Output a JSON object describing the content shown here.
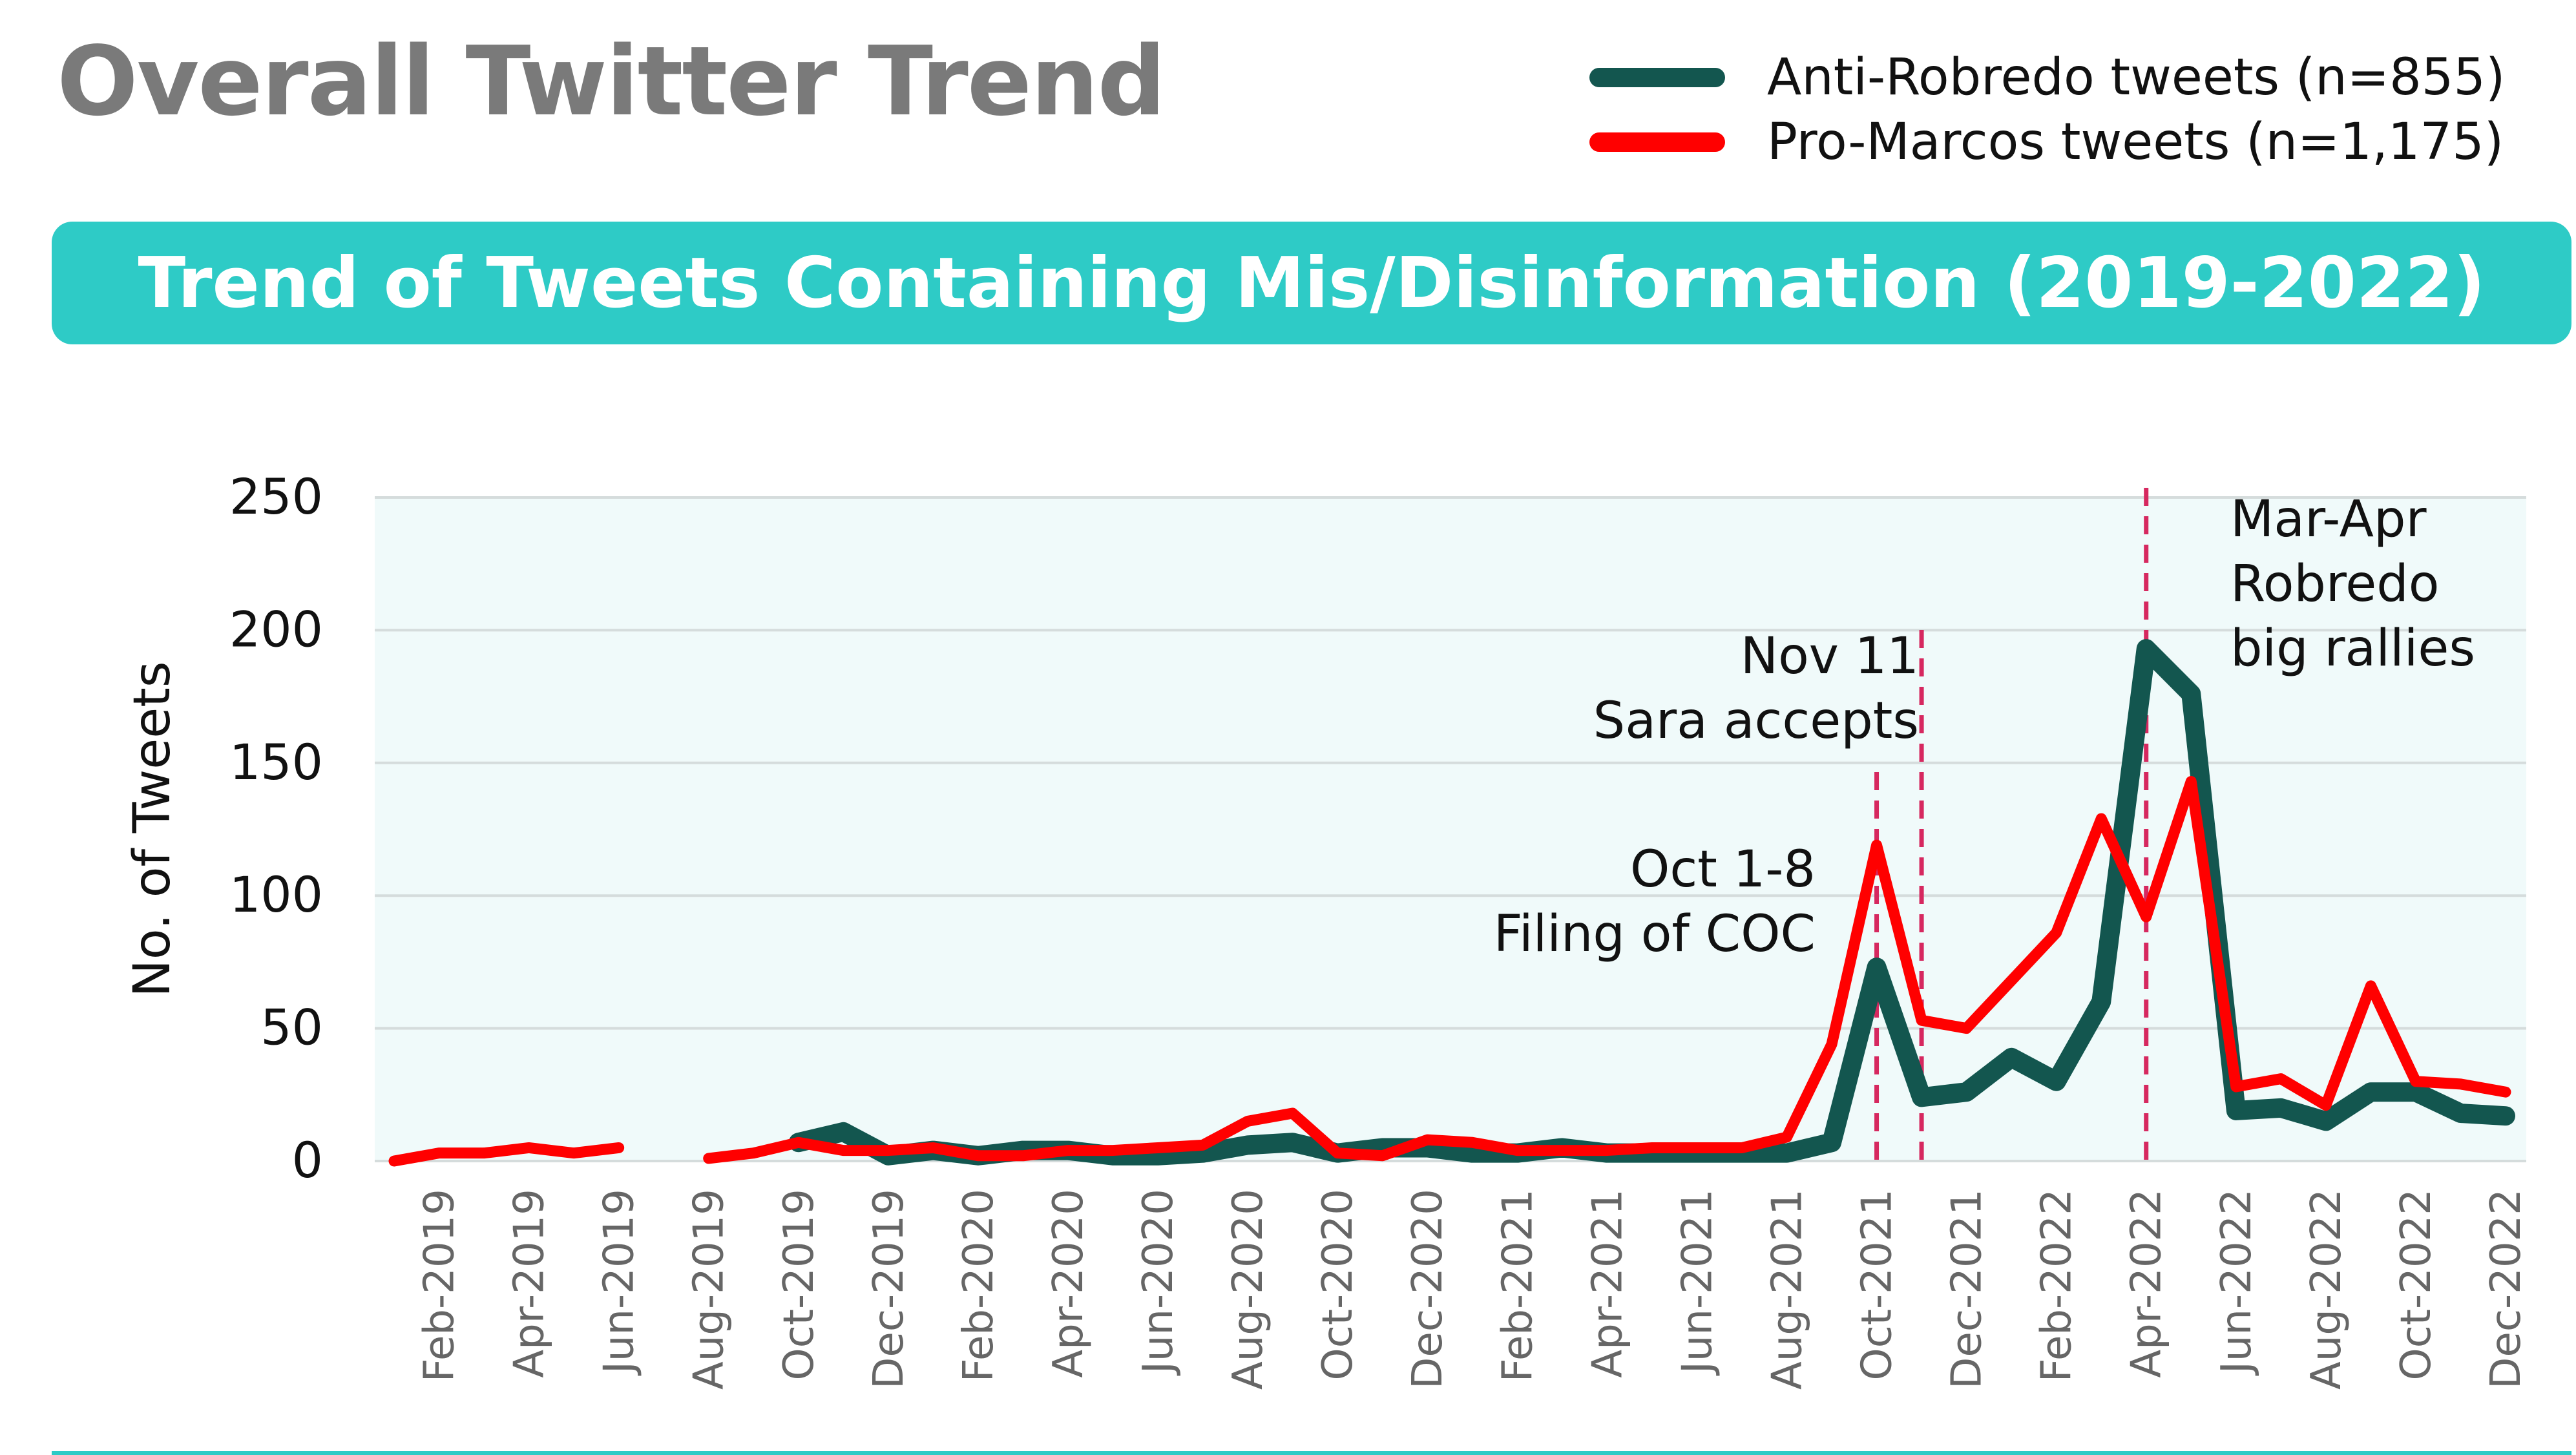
{
  "page_title": "Overall Twitter Trend",
  "banner_title": "Trend of Tweets Containing Mis/Disinformation (2019-2022)",
  "colors": {
    "banner": "#2ecbc6",
    "anti": "#13564f",
    "pro": "#ff0000",
    "marker": "#d6285f",
    "plot_bg": "#f0fafa",
    "grid": "#d5dcdc"
  },
  "chart_data": {
    "type": "line",
    "ylabel": "No. of Tweets",
    "xlabel": "",
    "ylim": [
      0,
      250
    ],
    "y_ticks": [
      0,
      50,
      100,
      150,
      200,
      250
    ],
    "grid": "horizontal",
    "legend_position": "top-right",
    "x": [
      "Jan-2019",
      "Feb-2019",
      "Mar-2019",
      "Apr-2019",
      "May-2019",
      "Jun-2019",
      "Jul-2019",
      "Aug-2019",
      "Sep-2019",
      "Oct-2019",
      "Nov-2019",
      "Dec-2019",
      "Jan-2020",
      "Feb-2020",
      "Mar-2020",
      "Apr-2020",
      "May-2020",
      "Jun-2020",
      "Jul-2020",
      "Aug-2020",
      "Sep-2020",
      "Oct-2020",
      "Nov-2020",
      "Dec-2020",
      "Jan-2021",
      "Feb-2021",
      "Mar-2021",
      "Apr-2021",
      "May-2021",
      "Jun-2021",
      "Jul-2021",
      "Aug-2021",
      "Sep-2021",
      "Oct-2021",
      "Nov-2021",
      "Dec-2021",
      "Jan-2022",
      "Feb-2022",
      "Mar-2022",
      "Apr-2022",
      "May-2022",
      "Jun-2022",
      "Jul-2022",
      "Aug-2022",
      "Sep-2022",
      "Oct-2022",
      "Nov-2022",
      "Dec-2022"
    ],
    "x_tick_labels": [
      "Feb-2019",
      "Apr-2019",
      "Jun-2019",
      "Aug-2019",
      "Oct-2019",
      "Dec-2019",
      "Feb-2020",
      "Apr-2020",
      "Jun-2020",
      "Aug-2020",
      "Oct-2020",
      "Dec-2020",
      "Feb-2021",
      "Apr-2021",
      "Jun-2021",
      "Aug-2021",
      "Oct-2021",
      "Dec-2021",
      "Feb-2022",
      "Apr-2022",
      "Jun-2022",
      "Aug-2022",
      "Oct-2022",
      "Dec-2022"
    ],
    "series": [
      {
        "name": "Anti-Robredo tweets (n=855)",
        "values": [
          null,
          null,
          null,
          null,
          null,
          null,
          null,
          null,
          null,
          7,
          11,
          2,
          4,
          2,
          4,
          4,
          2,
          2,
          3,
          6,
          7,
          3,
          5,
          5,
          3,
          3,
          5,
          3,
          3,
          3,
          3,
          3,
          7,
          73,
          24,
          26,
          39,
          30,
          60,
          193,
          176,
          19,
          20,
          15,
          26,
          26,
          18,
          17
        ]
      },
      {
        "name": "Pro-Marcos tweets (n=1,175)",
        "values": [
          0,
          3,
          3,
          5,
          3,
          5,
          null,
          1,
          3,
          7,
          4,
          4,
          5,
          2,
          2,
          4,
          4,
          5,
          6,
          15,
          18,
          3,
          2,
          8,
          7,
          4,
          4,
          4,
          5,
          5,
          5,
          9,
          44,
          119,
          53,
          50,
          68,
          86,
          129,
          92,
          143,
          28,
          31,
          21,
          66,
          30,
          29,
          26
        ]
      }
    ],
    "annotations": [
      {
        "x": "Oct-2021",
        "lines": [
          "Oct 1-8",
          "Filing of COC"
        ]
      },
      {
        "x": "Nov-2021",
        "lines": [
          "Nov 11",
          "Sara accepts"
        ]
      },
      {
        "x": "Apr-2022",
        "lines": [
          "Mar-Apr",
          "Robredo",
          "big rallies"
        ]
      }
    ]
  }
}
